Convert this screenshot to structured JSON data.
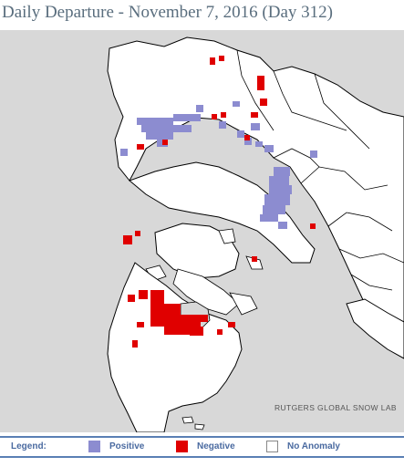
{
  "title": "Daily Departure - November 7, 2016 (Day 312)",
  "credit": "RUTGERS GLOBAL SNOW LAB",
  "legend": {
    "heading": "Legend:",
    "items": [
      {
        "label": "Positive",
        "color": "#8c8cd0"
      },
      {
        "label": "Negative",
        "color": "#e00000"
      },
      {
        "label": "No Anomaly",
        "color": "#ffffff"
      }
    ]
  },
  "colors": {
    "ocean": "#d8d8d8",
    "land": "#ffffff",
    "coast": "#000000",
    "legend_border": "#5a7fb4",
    "title_text": "#5a6e7e"
  }
}
